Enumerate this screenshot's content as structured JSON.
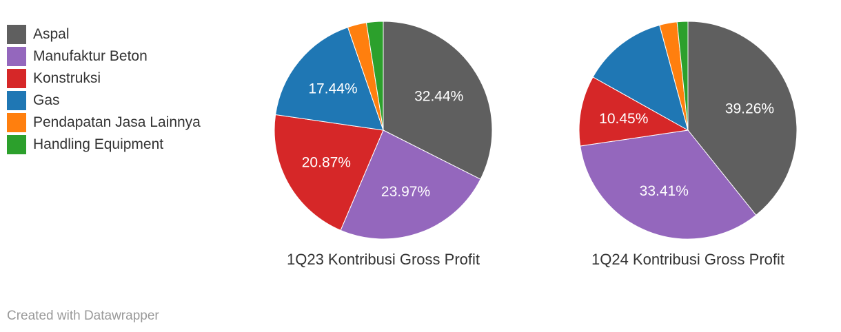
{
  "legend": [
    {
      "label": "Aspal",
      "color": "#5f5f5f"
    },
    {
      "label": "Manufaktur Beton",
      "color": "#9467bd"
    },
    {
      "label": "Konstruksi",
      "color": "#d62728"
    },
    {
      "label": "Gas",
      "color": "#1f77b4"
    },
    {
      "label": "Pendapatan Jasa Lainnya",
      "color": "#ff7f0e"
    },
    {
      "label": "Handling Equipment",
      "color": "#2ca02c"
    }
  ],
  "chart_data": [
    {
      "type": "pie",
      "title": "1Q23 Kontribusi Gross Profit",
      "categories": [
        "Aspal",
        "Manufaktur Beton",
        "Konstruksi",
        "Gas",
        "Pendapatan Jasa Lainnya",
        "Handling Equipment"
      ],
      "values": [
        32.44,
        23.97,
        20.87,
        17.44,
        2.8,
        2.48
      ],
      "labels": [
        "32.44%",
        "23.97%",
        "20.87%",
        "17.44%",
        "",
        ""
      ]
    },
    {
      "type": "pie",
      "title": "1Q24 Kontribusi Gross Profit",
      "categories": [
        "Aspal",
        "Manufaktur Beton",
        "Konstruksi",
        "Gas",
        "Pendapatan Jasa Lainnya",
        "Handling Equipment"
      ],
      "values": [
        39.26,
        33.41,
        10.45,
        12.68,
        2.6,
        1.6
      ],
      "labels": [
        "39.26%",
        "33.41%",
        "10.45%",
        "",
        "",
        ""
      ]
    }
  ],
  "credit": "Created with Datawrapper"
}
